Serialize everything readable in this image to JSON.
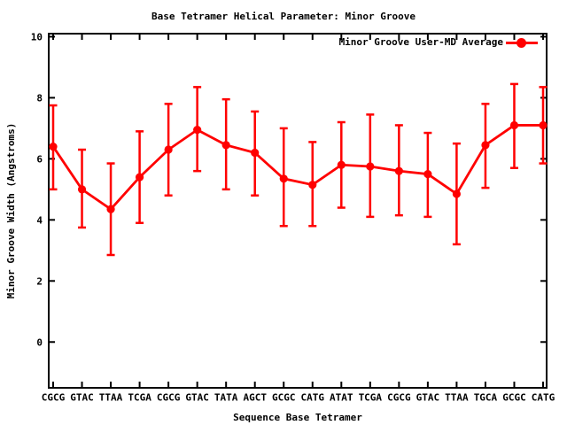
{
  "colors": {
    "series": "#ff0000",
    "axis": "#000000",
    "background": "#ffffff"
  },
  "chart_data": {
    "type": "line",
    "title": "Base Tetramer Helical Parameter: Minor Groove",
    "xlabel": "Sequence Base Tetramer",
    "ylabel": "Minor Groove Width (Angstroms)",
    "legend_position": "top-right-inside",
    "grid": false,
    "marker": "filled-circle",
    "error_bars": true,
    "ylim": [
      -1.5,
      10.1
    ],
    "yticks": [
      0,
      2,
      4,
      6,
      8,
      10
    ],
    "categories": [
      "CGCG",
      "GTAC",
      "TTAA",
      "TCGA",
      "CGCG",
      "GTAC",
      "TATA",
      "AGCT",
      "GCGC",
      "CATG",
      "ATAT",
      "TCGA",
      "CGCG",
      "GTAC",
      "TTAA",
      "TGCA",
      "GCGC",
      "CATG"
    ],
    "series": [
      {
        "name": "Minor Groove User-MD Average",
        "color": "#ff0000",
        "values": [
          6.4,
          5.0,
          4.35,
          5.4,
          6.3,
          6.95,
          6.45,
          6.2,
          5.35,
          5.15,
          5.8,
          5.75,
          5.6,
          5.5,
          4.85,
          6.45,
          7.1,
          7.1
        ],
        "err_low": [
          5.0,
          3.75,
          2.85,
          3.9,
          4.8,
          5.6,
          5.0,
          4.8,
          3.8,
          3.8,
          4.4,
          4.1,
          4.15,
          4.1,
          3.2,
          5.05,
          5.7,
          5.85
        ],
        "err_high": [
          7.75,
          6.3,
          5.85,
          6.9,
          7.8,
          8.35,
          7.95,
          7.55,
          7.0,
          6.55,
          7.2,
          7.45,
          7.1,
          6.85,
          6.5,
          7.8,
          8.45,
          8.35
        ]
      }
    ]
  }
}
